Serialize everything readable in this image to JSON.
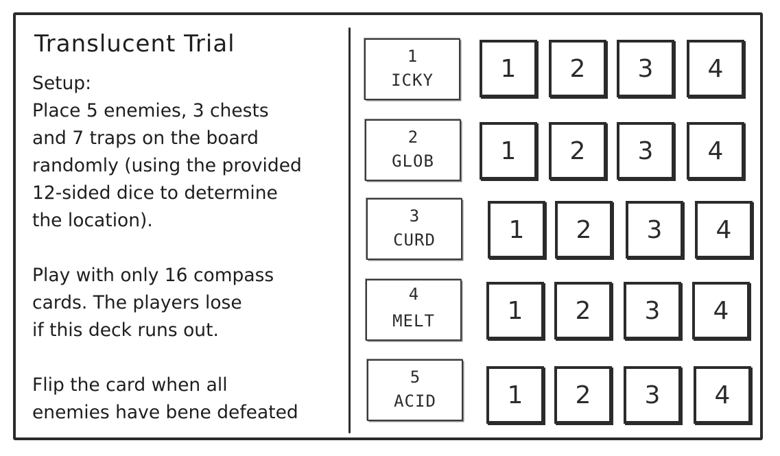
{
  "title": "Translucent Trial",
  "rules": {
    "setup_heading": "Setup:",
    "setup_lines": [
      "Place 5 enemies, 3 chests",
      "and 7 traps on the board",
      "randomly (using the provided",
      "12-sided dice to determine",
      "the location)."
    ],
    "deck_lines": [
      "Play with only 16 compass",
      "cards. The players lose",
      "if this deck runs out."
    ],
    "flip_lines": [
      "Flip the card when all",
      "enemies have bene defeated"
    ]
  },
  "enemies": [
    {
      "number": "1",
      "name": "ICKY",
      "slots": [
        "1",
        "2",
        "3",
        "4"
      ]
    },
    {
      "number": "2",
      "name": "GLOB",
      "slots": [
        "1",
        "2",
        "3",
        "4"
      ]
    },
    {
      "number": "3",
      "name": "CURD",
      "slots": [
        "1",
        "2",
        "3",
        "4"
      ]
    },
    {
      "number": "4",
      "name": "MELT",
      "slots": [
        "1",
        "2",
        "3",
        "4"
      ]
    },
    {
      "number": "5",
      "name": "ACID",
      "slots": [
        "1",
        "2",
        "3",
        "4"
      ]
    }
  ]
}
